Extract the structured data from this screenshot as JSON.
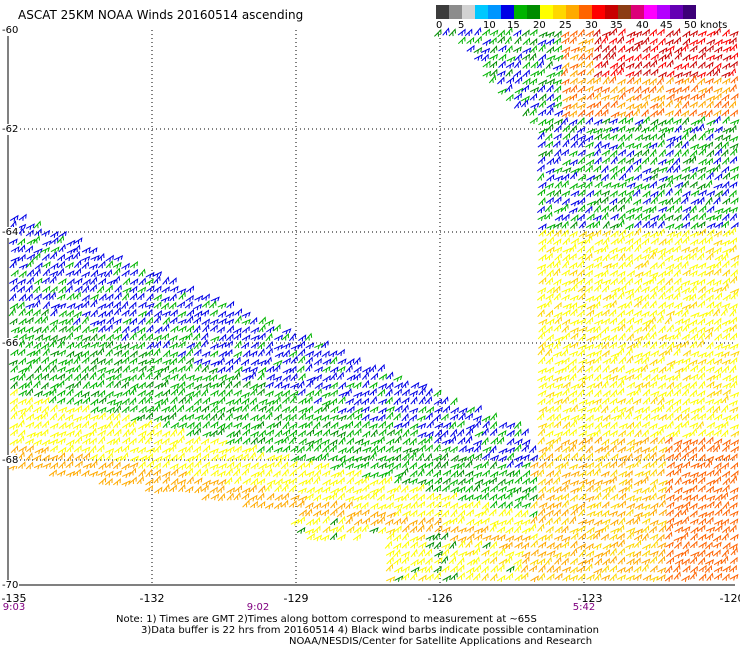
{
  "title": "ASCAT 25KM NOAA Winds 20160514 ascending",
  "colorbar": {
    "colors": [
      "#3c3c3c",
      "#8c8c8c",
      "#d2d2d2",
      "#00c8ff",
      "#0096ff",
      "#0000e6",
      "#00b400",
      "#008c00",
      "#ffff00",
      "#ffd700",
      "#ffaa00",
      "#ff6400",
      "#ff0000",
      "#c80000",
      "#8c3c14",
      "#dc0078",
      "#ff00ff",
      "#b400ff",
      "#6400b4",
      "#3c0078"
    ],
    "labels": [
      "0",
      "5",
      "10",
      "15",
      "20",
      "25",
      "30",
      "35",
      "40",
      "45",
      "50",
      "knots"
    ]
  },
  "lat_labels": [
    "-60",
    "-62",
    "-64",
    "-66",
    "-68",
    "-70"
  ],
  "lon_labels": [
    "-135",
    "-132",
    "-129",
    "-126",
    "-123",
    "-120"
  ],
  "time_labels": [
    "9:03",
    "9:02",
    "5:42"
  ],
  "notes": {
    "line1": "Note: 1) Times are GMT 2)Times along bottom correspond to measurement at ~65S",
    "line2": "3)Data buffer is 22 hrs from 20160514 4) Black wind barbs indicate possible contamination",
    "line3": "NOAA/NESDIS/Center for Satellite Applications and Research"
  }
}
